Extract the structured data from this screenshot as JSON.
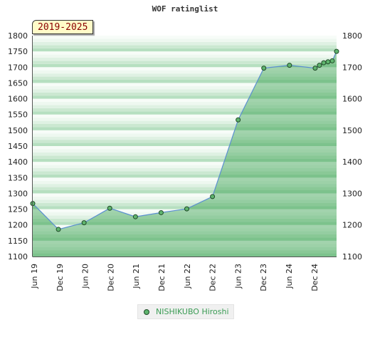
{
  "chart_data": {
    "type": "area",
    "title": "WOF ratinglist",
    "period_label": "2019-2025",
    "x_labels": [
      "Jun 19",
      "Dec 19",
      "Jun 20",
      "Dec 20",
      "Jun 21",
      "Dec 21",
      "Jun 22",
      "Dec 22",
      "Jun 23",
      "Dec 23",
      "Jun 24",
      "Dec 24"
    ],
    "ylim": [
      1100,
      1800
    ],
    "y_ticks": [
      1100,
      1150,
      1200,
      1250,
      1300,
      1350,
      1400,
      1450,
      1500,
      1550,
      1600,
      1650,
      1700,
      1750,
      1800
    ],
    "y_ticks_right": [
      1100,
      1200,
      1300,
      1400,
      1500,
      1600,
      1700,
      1800
    ],
    "legend_position": "bottom",
    "series": [
      {
        "name": "NISHIKUBO Hiroshi",
        "color": "#5fb46e",
        "points": [
          {
            "x": "2019-06",
            "y": 1268
          },
          {
            "x": "2019-12",
            "y": 1186
          },
          {
            "x": "2020-06",
            "y": 1207
          },
          {
            "x": "2020-12",
            "y": 1253
          },
          {
            "x": "2021-06",
            "y": 1226
          },
          {
            "x": "2021-12",
            "y": 1239
          },
          {
            "x": "2022-06",
            "y": 1251
          },
          {
            "x": "2022-12",
            "y": 1290
          },
          {
            "x": "2023-06",
            "y": 1533
          },
          {
            "x": "2023-12",
            "y": 1697
          },
          {
            "x": "2024-06",
            "y": 1706
          },
          {
            "x": "2024-12",
            "y": 1697
          },
          {
            "x": "2025-01",
            "y": 1706
          },
          {
            "x": "2025-02",
            "y": 1714
          },
          {
            "x": "2025-03",
            "y": 1717
          },
          {
            "x": "2025-04",
            "y": 1720
          },
          {
            "x": "2025-05",
            "y": 1750
          }
        ]
      }
    ]
  }
}
